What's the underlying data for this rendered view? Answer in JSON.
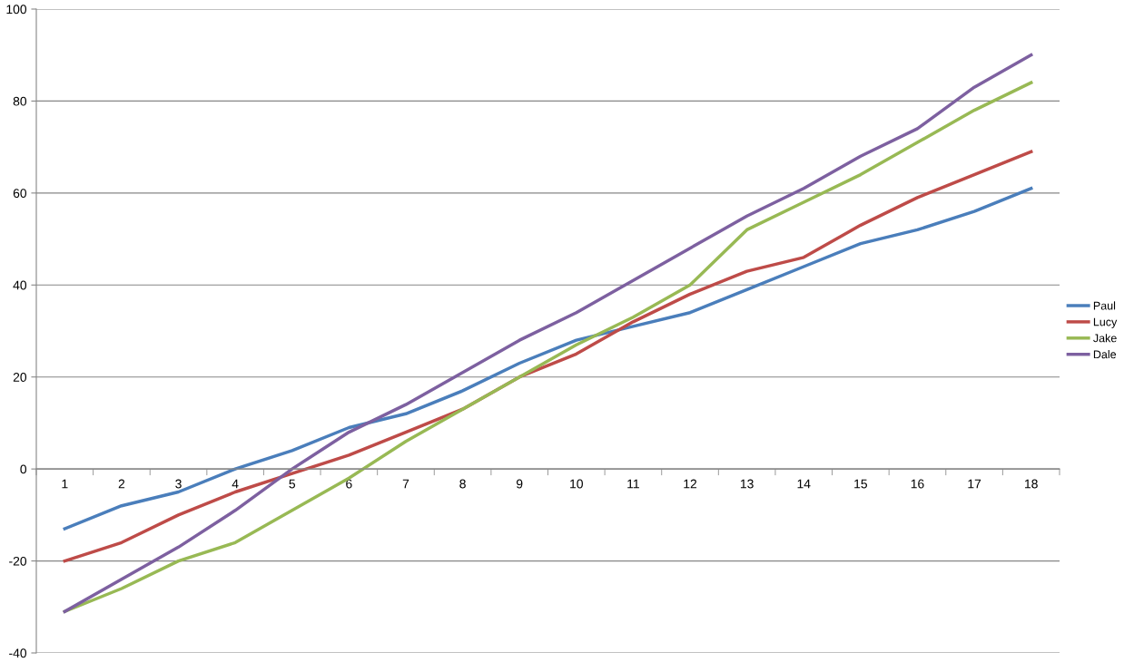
{
  "chart_data": {
    "type": "line",
    "categories": [
      "1",
      "2",
      "3",
      "4",
      "5",
      "6",
      "7",
      "8",
      "9",
      "10",
      "11",
      "12",
      "13",
      "14",
      "15",
      "16",
      "17",
      "18"
    ],
    "series": [
      {
        "name": "Paul",
        "color": "#4a7ebb",
        "values": [
          -13,
          -8,
          -5,
          0,
          4,
          9,
          12,
          17,
          23,
          28,
          31,
          34,
          39,
          44,
          49,
          52,
          56,
          61
        ]
      },
      {
        "name": "Lucy",
        "color": "#be4b48",
        "values": [
          -20,
          -16,
          -10,
          -5,
          -1,
          3,
          8,
          13,
          20,
          25,
          32,
          38,
          43,
          46,
          53,
          59,
          64,
          69
        ]
      },
      {
        "name": "Jake",
        "color": "#98b954",
        "values": [
          -31,
          -26,
          -20,
          -16,
          -9,
          -2,
          6,
          13,
          20,
          27,
          33,
          40,
          52,
          58,
          64,
          71,
          78,
          84
        ]
      },
      {
        "name": "Dale",
        "color": "#7d60a0",
        "values": [
          -31,
          -24,
          -17,
          -9,
          0,
          8,
          14,
          21,
          28,
          34,
          41,
          48,
          55,
          61,
          68,
          74,
          83,
          90
        ]
      }
    ],
    "ylim": [
      -40,
      100
    ],
    "yticks": [
      -40,
      -20,
      0,
      20,
      40,
      60,
      80,
      100
    ],
    "grid": "y",
    "legend": "right",
    "marker": "none",
    "line_style": "solid"
  }
}
